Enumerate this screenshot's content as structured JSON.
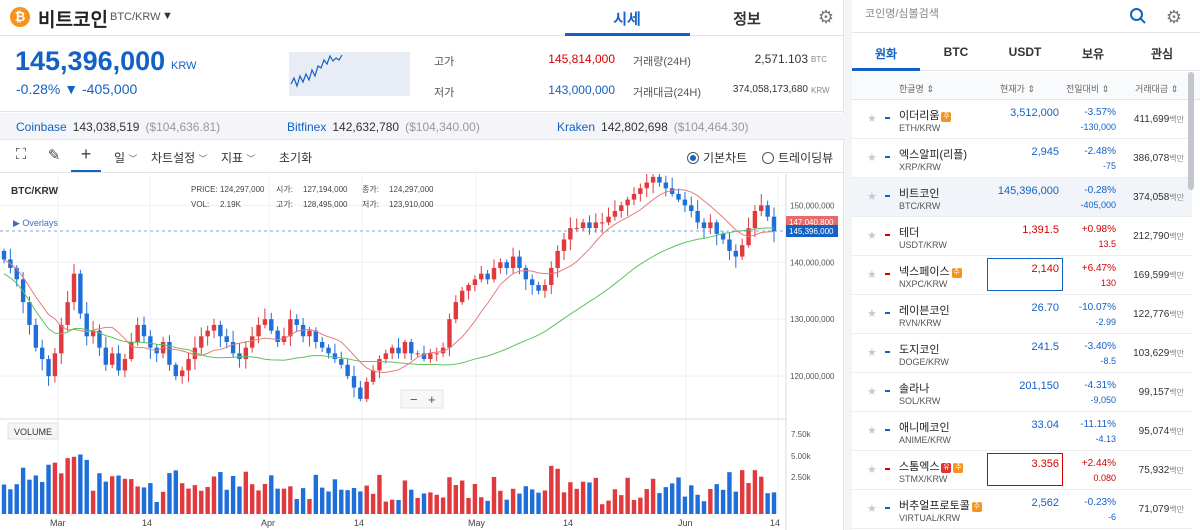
{
  "header": {
    "coin_logo": "₿",
    "coin_name": "비트코인",
    "coin_pair": "BTC/KRW",
    "tabs": [
      "시세",
      "정보"
    ]
  },
  "price": {
    "current": "145,396,000",
    "unit": "KRW",
    "change": "-0.28% ▼ -405,000",
    "high_label": "고가",
    "high": "145,814,000",
    "low_label": "저가",
    "low": "143,000,000",
    "volume_label": "거래량(24H)",
    "volume": "2,571.103",
    "volume_unit": "BTC",
    "amount_label": "거래대금(24H)",
    "amount": "374,058,173,680",
    "amount_unit": "KRW"
  },
  "exchanges": [
    {
      "name": "Coinbase",
      "price": "143,038,519",
      "usd": "($104,636.81)"
    },
    {
      "name": "Bitfinex",
      "price": "142,632,780",
      "usd": "($104,340.00)"
    },
    {
      "name": "Kraken",
      "price": "142,802,698",
      "usd": "($104,464.30)"
    }
  ],
  "toolbar": {
    "interval": "일",
    "chart_settings": "차트설정",
    "indicators": "지표",
    "reset": "초기화",
    "basic_chart": "기본차트",
    "tradingview": "트레이딩뷰"
  },
  "chart_info": {
    "pair": "BTC/KRW",
    "price_label": "PRICE:",
    "price": "124,297,000",
    "vol_label": "VOL:",
    "vol": "2.19K",
    "open_label": "시가:",
    "open": "127,194,000",
    "close_label": "종가:",
    "close": "124,297,000",
    "high_label": "고가:",
    "high": "128,495,000",
    "low_label": "저가:",
    "low": "123,910,000",
    "overlays": "▶ Overlays",
    "volume_tag": "VOLUME",
    "zoom_minus": "−",
    "zoom_plus": "+"
  },
  "chart_data": {
    "type": "candlestick",
    "price_axis_ticks": [
      "150,000,000",
      "140,000,000",
      "130,000,000",
      "120,000,000"
    ],
    "price_ylim": [
      113000000,
      155500000
    ],
    "volume_axis_ticks": [
      "7.50k",
      "5.00k",
      "2.50k"
    ],
    "x_ticks": [
      "Mar",
      "14",
      "Apr",
      "14",
      "May",
      "14",
      "Jun",
      "14"
    ],
    "last_price_label": "145,396,000",
    "ma_label": "147,040,800",
    "series": [
      {
        "name": "candles",
        "closes_in_millions": [
          140.5,
          139,
          137,
          133,
          129,
          125,
          123,
          120,
          124,
          129,
          133,
          138,
          131,
          127,
          128,
          125,
          122,
          124,
          121,
          123,
          126,
          129,
          127,
          125,
          124,
          126,
          122,
          120,
          121,
          123,
          125,
          127,
          128,
          129,
          127,
          126,
          124,
          123,
          125,
          127,
          129,
          130,
          128,
          126,
          127,
          130,
          129,
          127,
          128,
          126,
          125,
          124,
          123,
          122,
          120,
          118,
          116,
          119,
          121,
          123,
          124,
          125,
          124,
          126,
          124,
          124,
          123,
          124,
          124,
          125,
          130,
          133,
          135,
          136,
          137,
          138,
          137,
          139,
          140,
          139,
          141,
          139,
          137,
          136,
          135,
          136,
          139,
          142,
          144,
          146,
          146,
          147,
          146,
          147,
          147,
          148,
          149,
          150,
          151,
          152,
          153,
          154,
          155,
          154,
          153,
          152,
          151,
          150,
          149,
          147,
          146,
          147,
          145,
          144,
          142,
          141,
          143,
          146,
          149,
          150,
          148,
          145.4
        ]
      }
    ]
  },
  "right": {
    "search_placeholder": "코인명/심볼검색",
    "tabs": [
      "원화",
      "BTC",
      "USDT",
      "보유",
      "관심"
    ],
    "columns": [
      "한글명 ⇕",
      "현재가 ⇕",
      "전일대비 ⇕",
      "거래대금 ⇕"
    ],
    "volume_unit": "백만",
    "coins": [
      {
        "name": "이더리움",
        "badge": "주",
        "symbol": "ETH/KRW",
        "price": "3,512,000",
        "pct": "-3.57%",
        "chg": "-130,000",
        "vol": "411,699",
        "dir": "dn"
      },
      {
        "name": "엑스알피(리플)",
        "badge": "",
        "symbol": "XRP/KRW",
        "price": "2,945",
        "pct": "-2.48%",
        "chg": "-75",
        "vol": "386,078",
        "dir": "dn"
      },
      {
        "name": "비트코인",
        "badge": "",
        "symbol": "BTC/KRW",
        "price": "145,396,000",
        "pct": "-0.28%",
        "chg": "-405,000",
        "vol": "374,058",
        "dir": "dn"
      },
      {
        "name": "테더",
        "badge": "",
        "symbol": "USDT/KRW",
        "price": "1,391.5",
        "pct": "+0.98%",
        "chg": "13.5",
        "vol": "212,790",
        "dir": "up"
      },
      {
        "name": "넥스페이스",
        "badge": "주",
        "symbol": "NXPC/KRW",
        "price": "2,140",
        "pct": "+6.47%",
        "chg": "130",
        "vol": "169,599",
        "dir": "up"
      },
      {
        "name": "레이븐코인",
        "badge": "",
        "symbol": "RVN/KRW",
        "price": "26.70",
        "pct": "-10.07%",
        "chg": "-2.99",
        "vol": "122,776",
        "dir": "dn"
      },
      {
        "name": "도지코인",
        "badge": "",
        "symbol": "DOGE/KRW",
        "price": "241.5",
        "pct": "-3.40%",
        "chg": "-8.5",
        "vol": "103,629",
        "dir": "dn"
      },
      {
        "name": "솔라나",
        "badge": "",
        "symbol": "SOL/KRW",
        "price": "201,150",
        "pct": "-4.31%",
        "chg": "-9,050",
        "vol": "99,157",
        "dir": "dn"
      },
      {
        "name": "애니메코인",
        "badge": "",
        "symbol": "ANIME/KRW",
        "price": "33.04",
        "pct": "-11.11%",
        "chg": "-4.13",
        "vol": "95,074",
        "dir": "dn"
      },
      {
        "name": "스톰엑스",
        "badge": "유주",
        "symbol": "STMX/KRW",
        "price": "3.356",
        "pct": "+2.44%",
        "chg": "0.080",
        "vol": "75,932",
        "dir": "up"
      },
      {
        "name": "버추얼프로토콜",
        "badge": "주",
        "symbol": "VIRTUAL/KRW",
        "price": "2,562",
        "pct": "-0.23%",
        "chg": "-6",
        "vol": "71,079",
        "dir": "dn"
      }
    ]
  }
}
